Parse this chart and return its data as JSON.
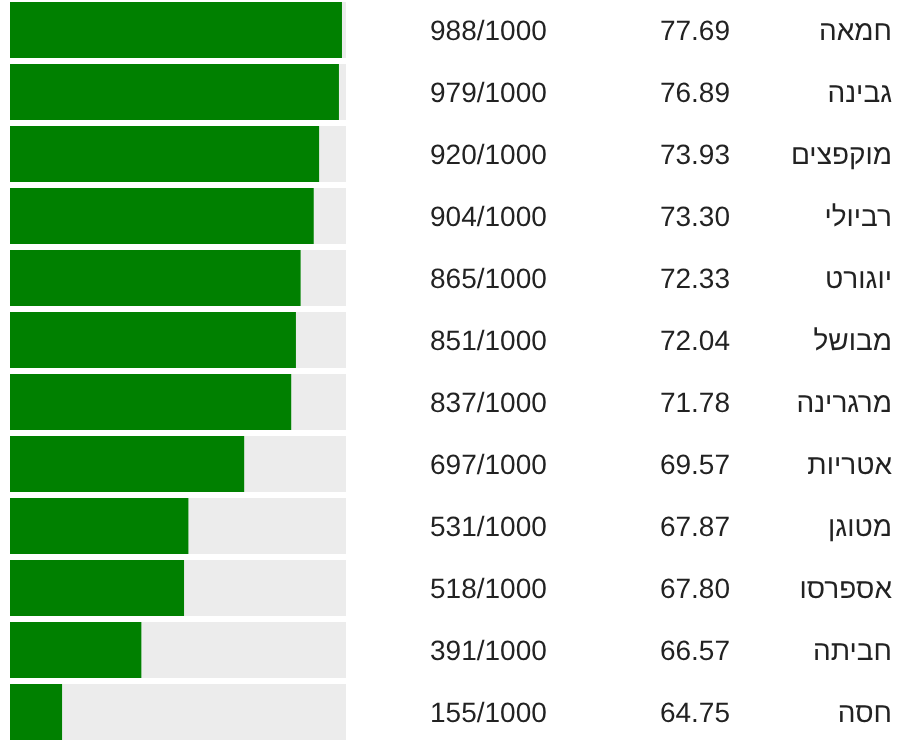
{
  "chart_data": {
    "type": "bar",
    "orientation": "horizontal",
    "tick_labels": false,
    "xlim": [
      0,
      1000
    ],
    "color": "#008000",
    "categories": [
      "חמאה",
      "גבינה",
      "מוקפצים",
      "רביולי",
      "יוגורט",
      "מבושל",
      "מרגרינה",
      "אטריות",
      "מטוגן",
      "אספרסו",
      "חביתה",
      "חסה"
    ],
    "values": [
      988,
      979,
      920,
      904,
      865,
      851,
      837,
      697,
      531,
      518,
      391,
      155
    ],
    "value_labels": [
      "988/1000",
      "979/1000",
      "920/1000",
      "904/1000",
      "865/1000",
      "851/1000",
      "837/1000",
      "697/1000",
      "531/1000",
      "518/1000",
      "391/1000",
      "155/1000"
    ],
    "annotations": [
      "77.69",
      "76.89",
      "73.93",
      "73.30",
      "72.33",
      "72.04",
      "71.78",
      "69.57",
      "67.87",
      "67.80",
      "66.57",
      "64.75"
    ]
  }
}
